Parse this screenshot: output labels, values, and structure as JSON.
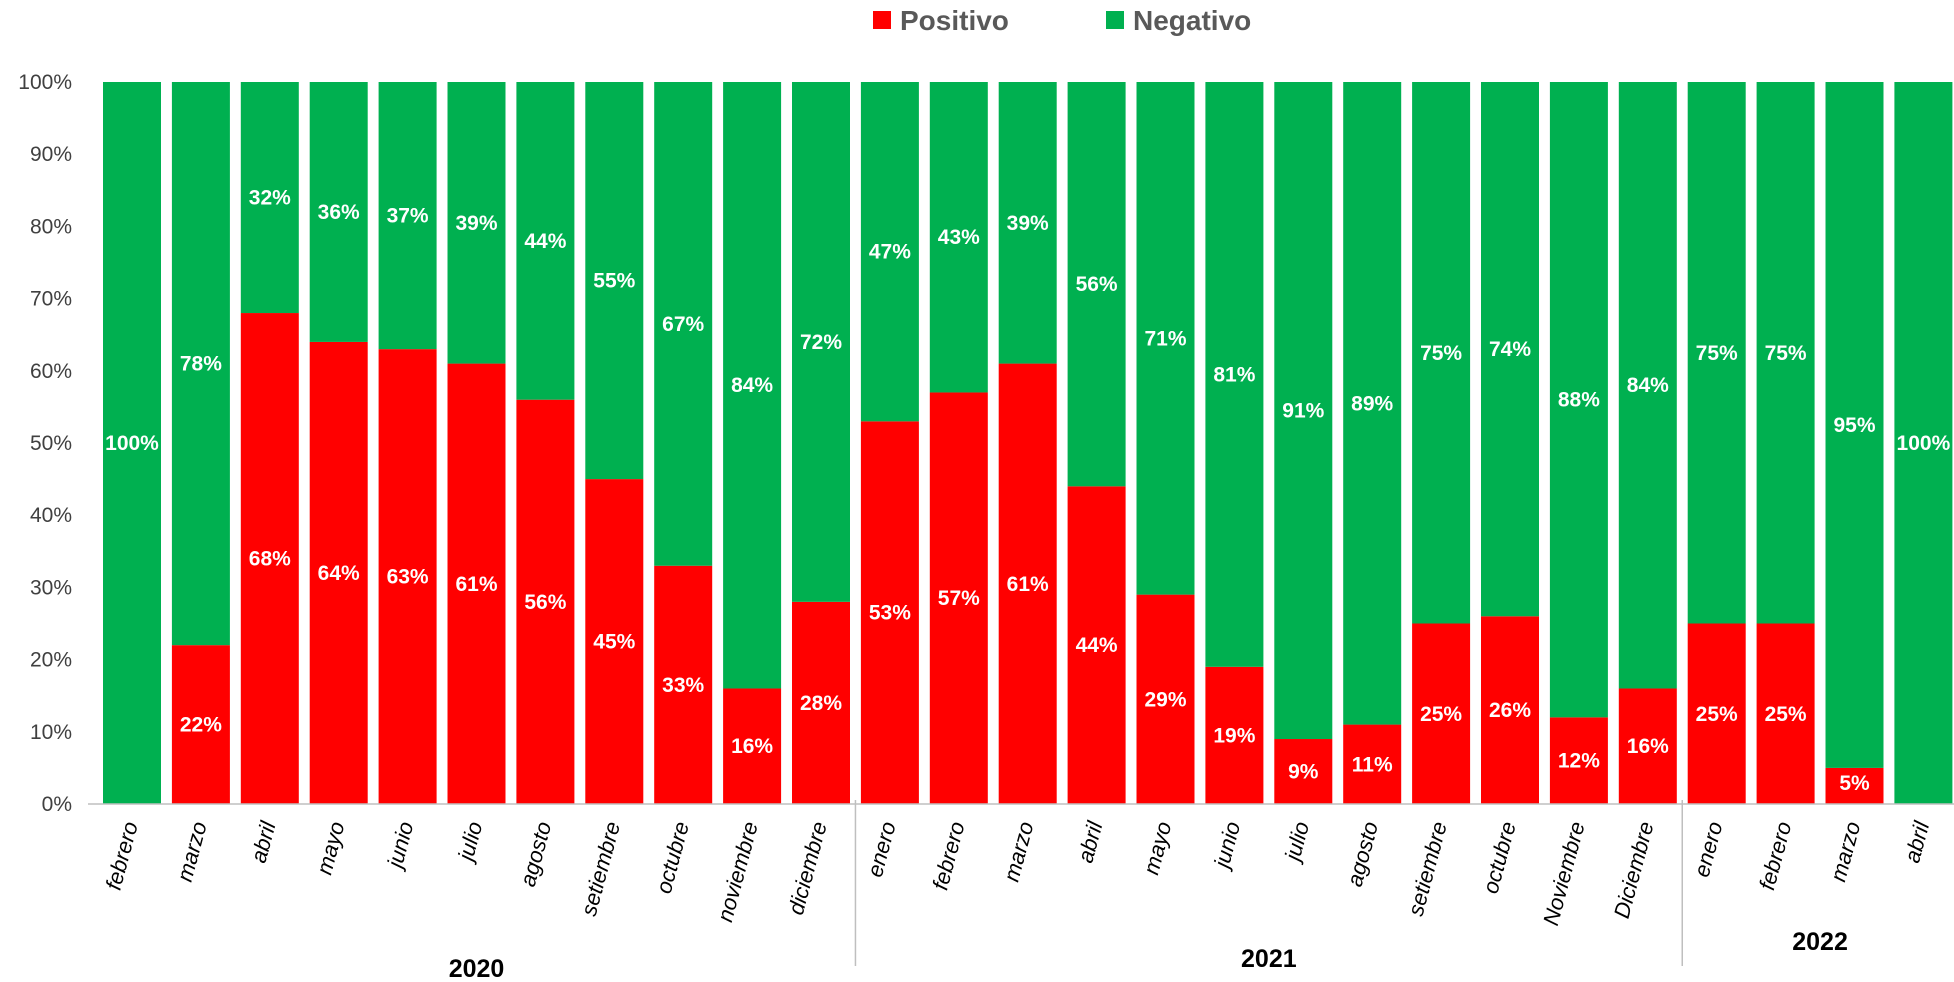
{
  "colors": {
    "positivo": "#ff0000",
    "negativo": "#00b050",
    "axis": "#bfbfbf"
  },
  "chart_data": {
    "type": "bar",
    "stacked": true,
    "percent_stacked": true,
    "categories": [
      "febrero",
      "marzo",
      "abril",
      "mayo",
      "junio",
      "julio",
      "agosto",
      "setiembre",
      "octubre",
      "noviembre",
      "diciembre",
      "enero",
      "febrero",
      "marzo",
      "abril",
      "mayo",
      "junio",
      "julio",
      "agosto",
      "setiembre",
      "octubre",
      "Noviembre",
      "Diciembre",
      "enero",
      "febrero",
      "marzo",
      "abril"
    ],
    "groups": [
      {
        "label": "2020",
        "count": 11
      },
      {
        "label": "2021",
        "count": 12
      },
      {
        "label": "2022",
        "count": 4
      }
    ],
    "series": [
      {
        "name": "Positivo",
        "values": [
          0,
          22,
          68,
          64,
          63,
          61,
          56,
          45,
          33,
          16,
          28,
          53,
          57,
          61,
          44,
          29,
          19,
          9,
          11,
          25,
          26,
          12,
          16,
          25,
          25,
          5,
          0
        ]
      },
      {
        "name": "Negativo",
        "values": [
          100,
          78,
          32,
          36,
          37,
          39,
          44,
          55,
          67,
          84,
          72,
          47,
          43,
          39,
          56,
          71,
          81,
          91,
          89,
          75,
          74,
          88,
          84,
          75,
          75,
          95,
          100
        ]
      }
    ],
    "y_ticks": [
      "0%",
      "10%",
      "20%",
      "30%",
      "40%",
      "50%",
      "60%",
      "70%",
      "80%",
      "90%",
      "100%"
    ],
    "ylim": [
      0,
      100
    ],
    "legend_position": "top",
    "grid": false
  }
}
